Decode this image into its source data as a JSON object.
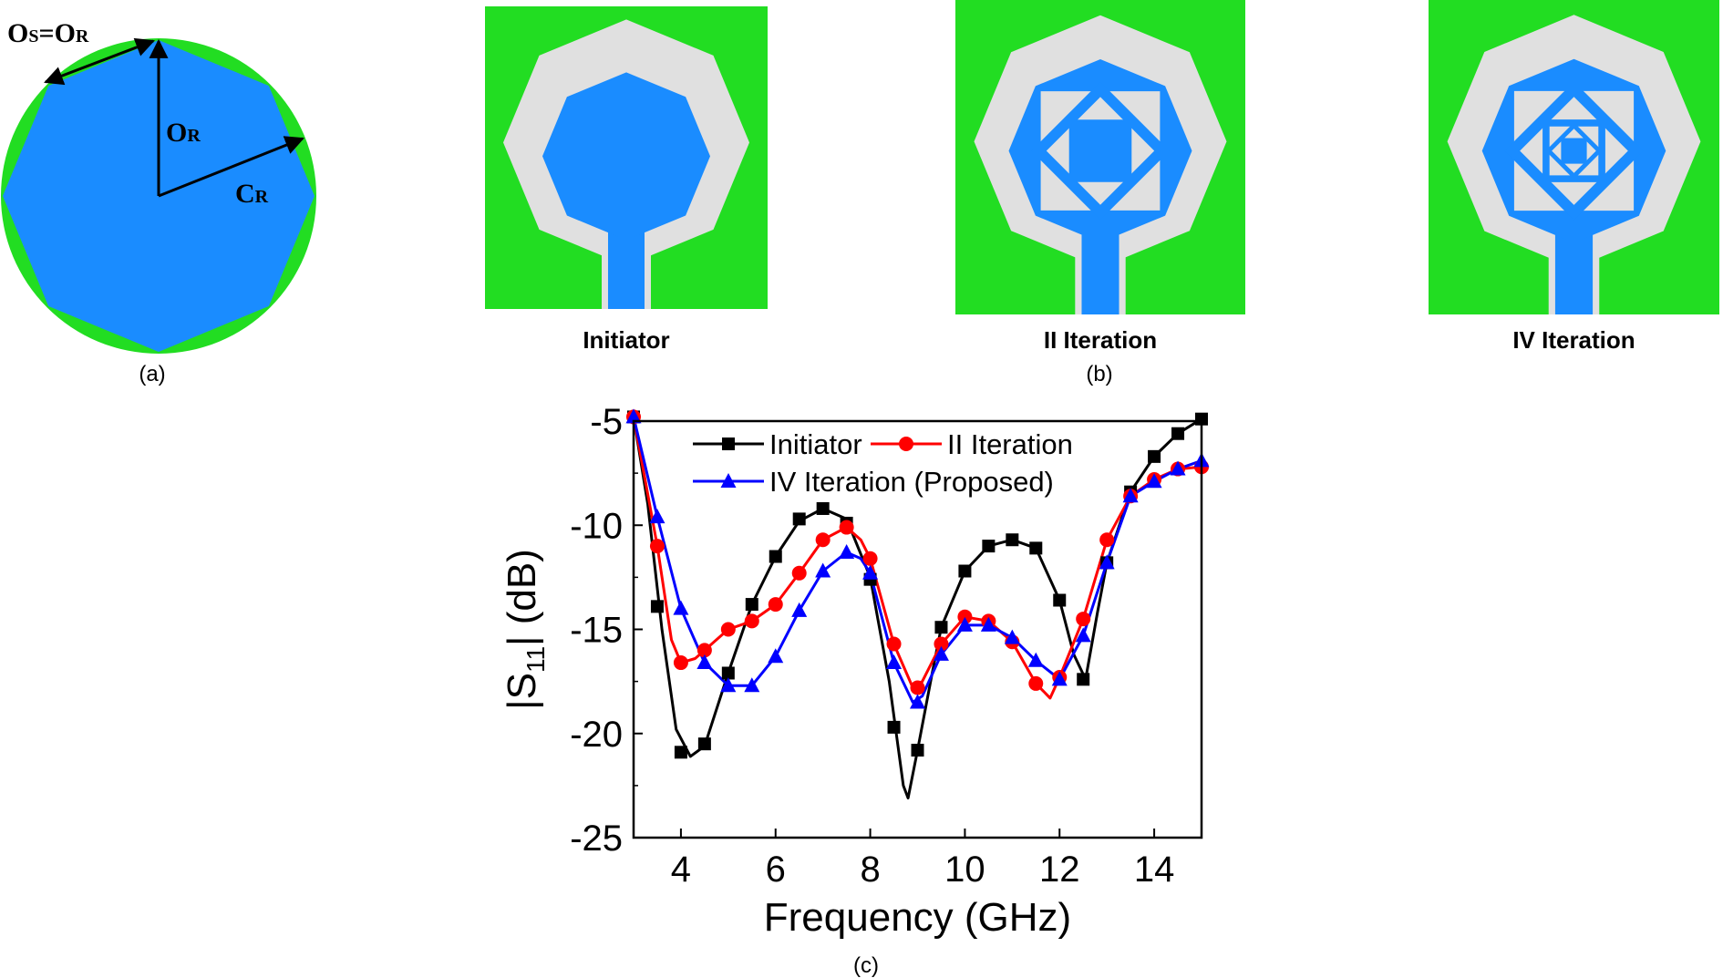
{
  "panel_a": {
    "caption": "(a)",
    "label_top": "Os=Or",
    "label_center": "Or",
    "label_right": "Cr",
    "top_main": [
      "O",
      "=O"
    ],
    "top_sub": [
      "S",
      "R"
    ],
    "mid_main": "O",
    "mid_sub": "R",
    "right_main": "C",
    "right_sub": "R",
    "colors": {
      "circle": "#22dd22",
      "octagon": "#1a8cff",
      "arrow": "#000000"
    }
  },
  "panel_b": {
    "caption": "(b)",
    "antennas": [
      {
        "label": "Initiator",
        "iteration": 0
      },
      {
        "label": "II Iteration",
        "iteration": 2
      },
      {
        "label": "IV Iteration",
        "iteration": 4
      }
    ],
    "colors": {
      "ground": "#22dd22",
      "gap": "#e0e0e0",
      "patch": "#1a8cff"
    }
  },
  "panel_c": {
    "caption": "(c)"
  },
  "chart_data": {
    "type": "line",
    "title": "",
    "xlabel": "Frequency (GHz)",
    "ylabel_main": "|S",
    "ylabel_sub": "11",
    "ylabel_tail": "| (dB)",
    "xlim": [
      3,
      15
    ],
    "ylim": [
      -25,
      -5
    ],
    "xticks": [
      4,
      6,
      8,
      10,
      12,
      14
    ],
    "yticks": [
      -5,
      -10,
      -15,
      -20,
      -25
    ],
    "legend_position": "top",
    "series": [
      {
        "name": "Initiator",
        "color": "#000000",
        "marker": "square",
        "x": [
          3,
          3.5,
          4,
          4.5,
          5,
          5.5,
          6,
          6.5,
          7,
          7.5,
          8,
          8.5,
          9,
          9.5,
          10,
          10.5,
          11,
          11.5,
          12,
          12.5,
          13,
          13.5,
          14,
          14.5,
          15
        ],
        "y": [
          -4.8,
          -13.9,
          -20.9,
          -20.5,
          -17.1,
          -13.8,
          -11.5,
          -9.7,
          -9.2,
          -9.9,
          -12.6,
          -19.7,
          -20.8,
          -14.9,
          -12.2,
          -11.0,
          -10.7,
          -11.1,
          -13.6,
          -17.4,
          -11.8,
          -8.4,
          -6.7,
          -5.6,
          -4.9
        ],
        "curve": [
          [
            3,
            -4.8
          ],
          [
            3.3,
            -9
          ],
          [
            3.6,
            -15
          ],
          [
            3.9,
            -19.8
          ],
          [
            4.2,
            -21.1
          ],
          [
            4.5,
            -20.6
          ],
          [
            5,
            -17.1
          ],
          [
            5.5,
            -13.8
          ],
          [
            6,
            -11.5
          ],
          [
            6.5,
            -9.8
          ],
          [
            7,
            -9.2
          ],
          [
            7.5,
            -9.7
          ],
          [
            8,
            -12.5
          ],
          [
            8.4,
            -17.5
          ],
          [
            8.7,
            -22.5
          ],
          [
            8.8,
            -23.1
          ],
          [
            9,
            -20.8
          ],
          [
            9.3,
            -17.2
          ],
          [
            9.5,
            -14.9
          ],
          [
            10,
            -12.2
          ],
          [
            10.5,
            -11
          ],
          [
            11,
            -10.7
          ],
          [
            11.5,
            -11.1
          ],
          [
            12,
            -13.6
          ],
          [
            12.3,
            -16.2
          ],
          [
            12.55,
            -17.4
          ],
          [
            12.8,
            -14.2
          ],
          [
            13,
            -11.8
          ],
          [
            13.5,
            -8.4
          ],
          [
            14,
            -6.7
          ],
          [
            14.5,
            -5.6
          ],
          [
            15,
            -4.9
          ]
        ]
      },
      {
        "name": "II Iteration",
        "color": "#ff0000",
        "marker": "circle",
        "x": [
          3,
          3.5,
          4,
          4.5,
          5,
          5.5,
          6,
          6.5,
          7,
          7.5,
          8,
          8.5,
          9,
          9.5,
          10,
          10.5,
          11,
          11.5,
          12,
          12.5,
          13,
          13.5,
          14,
          14.5,
          15
        ],
        "y": [
          -4.8,
          -11.0,
          -16.6,
          -16.0,
          -15.0,
          -14.6,
          -13.8,
          -12.3,
          -10.7,
          -10.1,
          -11.6,
          -15.7,
          -17.8,
          -15.7,
          -14.4,
          -14.6,
          -15.6,
          -17.6,
          -17.3,
          -14.5,
          -10.7,
          -8.6,
          -7.8,
          -7.3,
          -7.2
        ],
        "curve": [
          [
            3,
            -4.8
          ],
          [
            3.5,
            -11
          ],
          [
            3.8,
            -15.5
          ],
          [
            4,
            -16.6
          ],
          [
            4.3,
            -16.4
          ],
          [
            4.5,
            -16
          ],
          [
            5,
            -15
          ],
          [
            5.5,
            -14.6
          ],
          [
            6,
            -13.8
          ],
          [
            6.5,
            -12.3
          ],
          [
            7,
            -10.7
          ],
          [
            7.5,
            -10.1
          ],
          [
            7.8,
            -10.7
          ],
          [
            8,
            -11.6
          ],
          [
            8.5,
            -15.7
          ],
          [
            8.9,
            -17.8
          ],
          [
            9.1,
            -17.5
          ],
          [
            9.5,
            -15.7
          ],
          [
            10,
            -14.4
          ],
          [
            10.5,
            -14.6
          ],
          [
            11,
            -15.6
          ],
          [
            11.5,
            -17.6
          ],
          [
            11.8,
            -18.3
          ],
          [
            12,
            -17.3
          ],
          [
            12.5,
            -14.5
          ],
          [
            13,
            -10.7
          ],
          [
            13.5,
            -8.6
          ],
          [
            14,
            -7.8
          ],
          [
            14.5,
            -7.3
          ],
          [
            15,
            -7.2
          ]
        ]
      },
      {
        "name": "IV Iteration (Proposed)",
        "color": "#0000ff",
        "marker": "triangle",
        "x": [
          3,
          3.5,
          4,
          4.5,
          5,
          5.5,
          6,
          6.5,
          7,
          7.5,
          8,
          8.5,
          9,
          9.5,
          10,
          10.5,
          11,
          11.5,
          12,
          12.5,
          13,
          13.5,
          14,
          14.5,
          15
        ],
        "y": [
          -4.8,
          -9.6,
          -14.0,
          -16.6,
          -17.7,
          -17.7,
          -16.3,
          -14.1,
          -12.2,
          -11.3,
          -12.3,
          -16.6,
          -18.5,
          -16.2,
          -14.8,
          -14.8,
          -15.4,
          -16.5,
          -17.4,
          -15.3,
          -11.8,
          -8.6,
          -7.9,
          -7.3,
          -6.9
        ],
        "curve": [
          [
            3,
            -4.8
          ],
          [
            3.5,
            -9.6
          ],
          [
            4,
            -14
          ],
          [
            4.5,
            -16.6
          ],
          [
            5,
            -17.7
          ],
          [
            5.5,
            -17.7
          ],
          [
            6,
            -16.3
          ],
          [
            6.5,
            -14.1
          ],
          [
            7,
            -12.2
          ],
          [
            7.5,
            -11.3
          ],
          [
            7.8,
            -11.6
          ],
          [
            8,
            -12.3
          ],
          [
            8.5,
            -16.6
          ],
          [
            8.9,
            -18.5
          ],
          [
            9.1,
            -18.2
          ],
          [
            9.5,
            -16.2
          ],
          [
            10,
            -14.8
          ],
          [
            10.5,
            -14.8
          ],
          [
            11,
            -15.4
          ],
          [
            11.5,
            -16.5
          ],
          [
            12,
            -17.4
          ],
          [
            12.5,
            -15.3
          ],
          [
            13,
            -11.8
          ],
          [
            13.5,
            -8.6
          ],
          [
            14,
            -7.9
          ],
          [
            14.5,
            -7.3
          ],
          [
            15,
            -6.9
          ]
        ]
      }
    ]
  }
}
